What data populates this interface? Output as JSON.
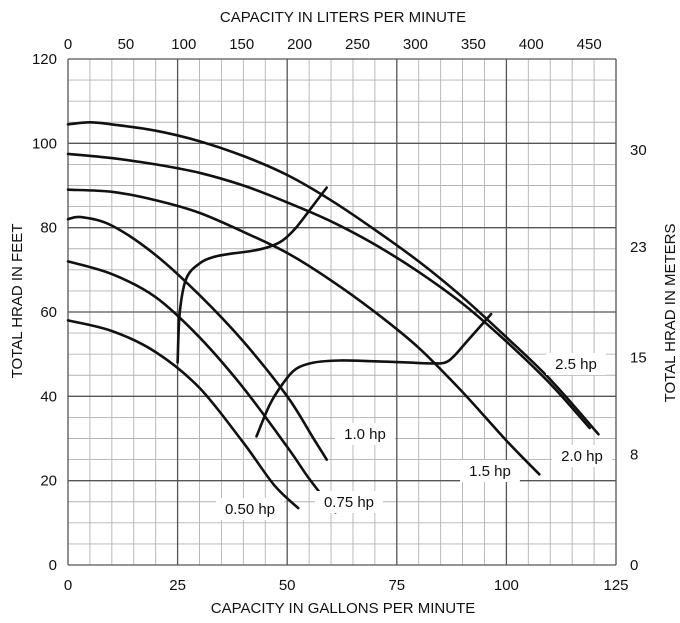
{
  "chart_data": {
    "type": "line",
    "title": "",
    "xlabel": "CAPACITY IN GALLONS PER MINUTE",
    "x2label": "CAPACITY IN LITERS PER MINUTE",
    "ylabel": "TOTAL HRAD IN FEET",
    "y2label": "TOTAL HRAD IN METERS",
    "xlim": [
      0,
      125
    ],
    "ylim": [
      0,
      120
    ],
    "x_ticks": [
      0,
      25,
      50,
      75,
      100,
      125
    ],
    "y_ticks": [
      0,
      20,
      40,
      60,
      80,
      100,
      120
    ],
    "x2_ticks": [
      "0",
      "50",
      "100",
      "150",
      "200",
      "250",
      "300",
      "350",
      "400",
      "450"
    ],
    "x2_tick_values_gpm": [
      0,
      13.21,
      26.42,
      39.63,
      52.83,
      66.04,
      79.25,
      92.46,
      105.67,
      118.88
    ],
    "y2_ticks": [
      "0",
      "8",
      "15",
      "23",
      "30"
    ],
    "y2_tick_values_ft": [
      0,
      26.25,
      49.21,
      75.46,
      98.43
    ],
    "grid": true,
    "series": [
      {
        "name": "0.50 hp",
        "x": [
          0,
          10,
          20,
          30,
          40,
          47,
          52.5
        ],
        "y": [
          58,
          55.5,
          50.5,
          42,
          29,
          19,
          13.5
        ]
      },
      {
        "name": "0.75 hp",
        "x": [
          0,
          10,
          20,
          30,
          40,
          50,
          55,
          61
        ],
        "y": [
          72,
          69,
          63.5,
          54,
          42,
          28,
          20.5,
          12.5
        ]
      },
      {
        "name": "1.0 hp",
        "x": [
          0,
          3,
          10,
          20,
          30,
          40,
          50,
          56,
          59
        ],
        "y": [
          82,
          82.5,
          80.5,
          73.5,
          64,
          53,
          40,
          30,
          25
        ]
      },
      {
        "name": "1.5 hp",
        "x": [
          0,
          10,
          20,
          30,
          40,
          50,
          60,
          70,
          80,
          90,
          100,
          107.5
        ],
        "y": [
          89,
          88.5,
          86.5,
          83.5,
          79,
          74,
          67.5,
          60,
          51.5,
          41,
          29.5,
          21.5
        ]
      },
      {
        "name": "2.0 hp",
        "x": [
          0,
          10,
          20,
          30,
          40,
          50,
          60,
          70,
          80,
          90,
          100,
          110,
          119
        ],
        "y": [
          97.5,
          96.5,
          95,
          93,
          90,
          86,
          81.5,
          76,
          69.5,
          62,
          53,
          43,
          32.5
        ]
      },
      {
        "name": "2.5 hp",
        "x": [
          0,
          5,
          10,
          20,
          30,
          40,
          50,
          60,
          70,
          80,
          90,
          100,
          110,
          121
        ],
        "y": [
          104.5,
          105,
          104.5,
          103,
          100.5,
          97,
          92.5,
          86.5,
          79.5,
          72,
          63.5,
          54,
          44,
          31
        ]
      }
    ],
    "envelopes": [
      {
        "x": [
          25,
          25.5,
          27,
          30,
          33,
          37,
          42,
          46,
          49,
          52,
          55,
          59
        ],
        "y": [
          48,
          60,
          68,
          71.5,
          73,
          73.8,
          74.5,
          75.5,
          77,
          80,
          84,
          89.5
        ]
      },
      {
        "x": [
          43,
          46,
          49,
          52,
          56,
          62,
          70,
          78,
          83,
          86,
          88,
          91,
          96.5
        ],
        "y": [
          30.5,
          38,
          43,
          46.5,
          48,
          48.5,
          48.3,
          48,
          47.8,
          48,
          49.5,
          53,
          59.5
        ]
      }
    ],
    "hp_labels": [
      "0.50 hp",
      "0.75 hp",
      "1.0 hp",
      "1.5 hp",
      "2.0 hp",
      "2.5 hp"
    ]
  }
}
